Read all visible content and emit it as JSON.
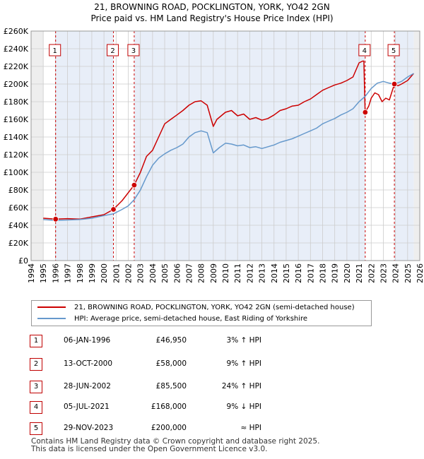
{
  "chart_data": {
    "type": "line",
    "title": "21, BROWNING ROAD, POCKLINGTON, YORK, YO42 2GN",
    "subtitle": "Price paid vs. HM Land Registry's House Price Index (HPI)",
    "ylim": [
      0,
      260000
    ],
    "xlim": [
      1994,
      2026
    ],
    "y_ticks": [
      0,
      20000,
      40000,
      60000,
      80000,
      100000,
      120000,
      140000,
      160000,
      180000,
      200000,
      220000,
      240000,
      260000
    ],
    "y_tick_labels": [
      "£0",
      "£20K",
      "£40K",
      "£60K",
      "£80K",
      "£100K",
      "£120K",
      "£140K",
      "£160K",
      "£180K",
      "£200K",
      "£220K",
      "£240K",
      "£260K"
    ],
    "x_ticks": [
      1994,
      1995,
      1996,
      1997,
      1998,
      1999,
      2000,
      2001,
      2002,
      2003,
      2004,
      2005,
      2006,
      2007,
      2008,
      2009,
      2010,
      2011,
      2012,
      2013,
      2014,
      2015,
      2016,
      2017,
      2018,
      2019,
      2020,
      2021,
      2022,
      2023,
      2024,
      2025,
      2026
    ],
    "x_tick_labels": [
      "1994",
      "1995",
      "1996",
      "1997",
      "1998",
      "1999",
      "2000",
      "2001",
      "2002",
      "2003",
      "2004",
      "2005",
      "2006",
      "2007",
      "2008",
      "2009",
      "2010",
      "2011",
      "2012",
      "2013",
      "2014",
      "2015",
      "2016",
      "2017",
      "2018",
      "2019",
      "2020",
      "2021",
      "2022",
      "2023",
      "2024",
      "2025",
      "2026"
    ],
    "data_start": 1995.0,
    "data_end": 2025.5,
    "series": [
      {
        "name": "21, BROWNING ROAD, POCKLINGTON, YORK, YO42 2GN (semi-detached house)",
        "color": "#cc0000",
        "points": [
          [
            1995.0,
            48000
          ],
          [
            1996.02,
            46950
          ],
          [
            1997.0,
            47500
          ],
          [
            1998.0,
            47000
          ],
          [
            1999.0,
            49500
          ],
          [
            2000.0,
            52000
          ],
          [
            2000.78,
            58000
          ],
          [
            2001.5,
            68000
          ],
          [
            2002.49,
            85500
          ],
          [
            2003.0,
            100000
          ],
          [
            2003.5,
            118000
          ],
          [
            2004.0,
            125000
          ],
          [
            2004.5,
            140000
          ],
          [
            2005.0,
            155000
          ],
          [
            2005.5,
            160000
          ],
          [
            2006.0,
            165000
          ],
          [
            2006.5,
            170000
          ],
          [
            2007.0,
            176000
          ],
          [
            2007.5,
            180000
          ],
          [
            2008.0,
            181000
          ],
          [
            2008.5,
            176000
          ],
          [
            2009.0,
            152000
          ],
          [
            2009.3,
            160000
          ],
          [
            2010.0,
            168000
          ],
          [
            2010.5,
            170000
          ],
          [
            2011.0,
            164000
          ],
          [
            2011.5,
            166000
          ],
          [
            2012.0,
            160000
          ],
          [
            2012.5,
            162000
          ],
          [
            2013.0,
            159000
          ],
          [
            2013.5,
            161000
          ],
          [
            2014.0,
            165000
          ],
          [
            2014.5,
            170000
          ],
          [
            2015.0,
            172000
          ],
          [
            2015.5,
            175000
          ],
          [
            2016.0,
            176000
          ],
          [
            2016.5,
            180000
          ],
          [
            2017.0,
            183000
          ],
          [
            2017.5,
            188000
          ],
          [
            2018.0,
            193000
          ],
          [
            2018.5,
            196000
          ],
          [
            2019.0,
            199000
          ],
          [
            2019.5,
            201000
          ],
          [
            2020.0,
            204000
          ],
          [
            2020.5,
            208000
          ],
          [
            2021.0,
            224000
          ],
          [
            2021.3,
            226000
          ],
          [
            2021.4,
            226000
          ],
          [
            2021.5,
            168000
          ],
          [
            2021.8,
            175000
          ],
          [
            2022.0,
            184000
          ],
          [
            2022.3,
            190000
          ],
          [
            2022.6,
            188000
          ],
          [
            2022.9,
            180000
          ],
          [
            2023.2,
            184000
          ],
          [
            2023.5,
            182000
          ],
          [
            2023.91,
            200000
          ],
          [
            2024.2,
            198000
          ],
          [
            2024.5,
            200000
          ],
          [
            2025.0,
            204000
          ],
          [
            2025.5,
            212000
          ]
        ]
      },
      {
        "name": "HPI: Average price, semi-detached house, East Riding of Yorkshire",
        "color": "#6699cc",
        "points": [
          [
            1995.0,
            46500
          ],
          [
            1996.0,
            45500
          ],
          [
            1997.0,
            46000
          ],
          [
            1998.0,
            46500
          ],
          [
            1999.0,
            48000
          ],
          [
            2000.0,
            51000
          ],
          [
            2000.78,
            53000
          ],
          [
            2001.5,
            58000
          ],
          [
            2002.0,
            62000
          ],
          [
            2002.49,
            69000
          ],
          [
            2003.0,
            80000
          ],
          [
            2003.5,
            95000
          ],
          [
            2004.0,
            108000
          ],
          [
            2004.5,
            116000
          ],
          [
            2005.0,
            121000
          ],
          [
            2005.5,
            125000
          ],
          [
            2006.0,
            128000
          ],
          [
            2006.5,
            132000
          ],
          [
            2007.0,
            140000
          ],
          [
            2007.5,
            145000
          ],
          [
            2008.0,
            147000
          ],
          [
            2008.5,
            145000
          ],
          [
            2009.0,
            122000
          ],
          [
            2009.5,
            128000
          ],
          [
            2010.0,
            133000
          ],
          [
            2010.5,
            132000
          ],
          [
            2011.0,
            130000
          ],
          [
            2011.5,
            131000
          ],
          [
            2012.0,
            128000
          ],
          [
            2012.5,
            129000
          ],
          [
            2013.0,
            127000
          ],
          [
            2013.5,
            129000
          ],
          [
            2014.0,
            131000
          ],
          [
            2014.5,
            134000
          ],
          [
            2015.0,
            136000
          ],
          [
            2015.5,
            138000
          ],
          [
            2016.0,
            141000
          ],
          [
            2016.5,
            144000
          ],
          [
            2017.0,
            147000
          ],
          [
            2017.5,
            150000
          ],
          [
            2018.0,
            155000
          ],
          [
            2018.5,
            158000
          ],
          [
            2019.0,
            161000
          ],
          [
            2019.5,
            165000
          ],
          [
            2020.0,
            168000
          ],
          [
            2020.5,
            172000
          ],
          [
            2021.0,
            180000
          ],
          [
            2021.5,
            186000
          ],
          [
            2022.0,
            195000
          ],
          [
            2022.5,
            201000
          ],
          [
            2023.0,
            203000
          ],
          [
            2023.5,
            201000
          ],
          [
            2023.91,
            200000
          ],
          [
            2024.5,
            203000
          ],
          [
            2025.0,
            208000
          ],
          [
            2025.5,
            212000
          ]
        ]
      }
    ],
    "sales": [
      {
        "n": "1",
        "x": 1996.02,
        "price": 46950,
        "date": "06-JAN-1996",
        "price_label": "£46,950",
        "hpi": "3% ↑ HPI"
      },
      {
        "n": "2",
        "x": 2000.78,
        "price": 58000,
        "date": "13-OCT-2000",
        "price_label": "£58,000",
        "hpi": "9% ↑ HPI"
      },
      {
        "n": "3",
        "x": 2002.49,
        "price": 85500,
        "date": "28-JUN-2002",
        "price_label": "£85,500",
        "hpi": "24% ↑ HPI"
      },
      {
        "n": "4",
        "x": 2021.51,
        "price": 168000,
        "date": "05-JUL-2021",
        "price_label": "£168,000",
        "hpi": "9% ↓ HPI"
      },
      {
        "n": "5",
        "x": 2023.91,
        "price": 200000,
        "date": "29-NOV-2023",
        "price_label": "£200,000",
        "hpi": "≈ HPI"
      }
    ]
  },
  "footer": {
    "line1": "Contains HM Land Registry data © Crown copyright and database right 2025.",
    "line2": "This data is licensed under the Open Government Licence v3.0."
  },
  "colors": {
    "property_line": "#cc0000",
    "hpi_line": "#6699cc",
    "band": "#e8eef8",
    "grid": "#cccccc",
    "marker_border": "#c00000"
  }
}
